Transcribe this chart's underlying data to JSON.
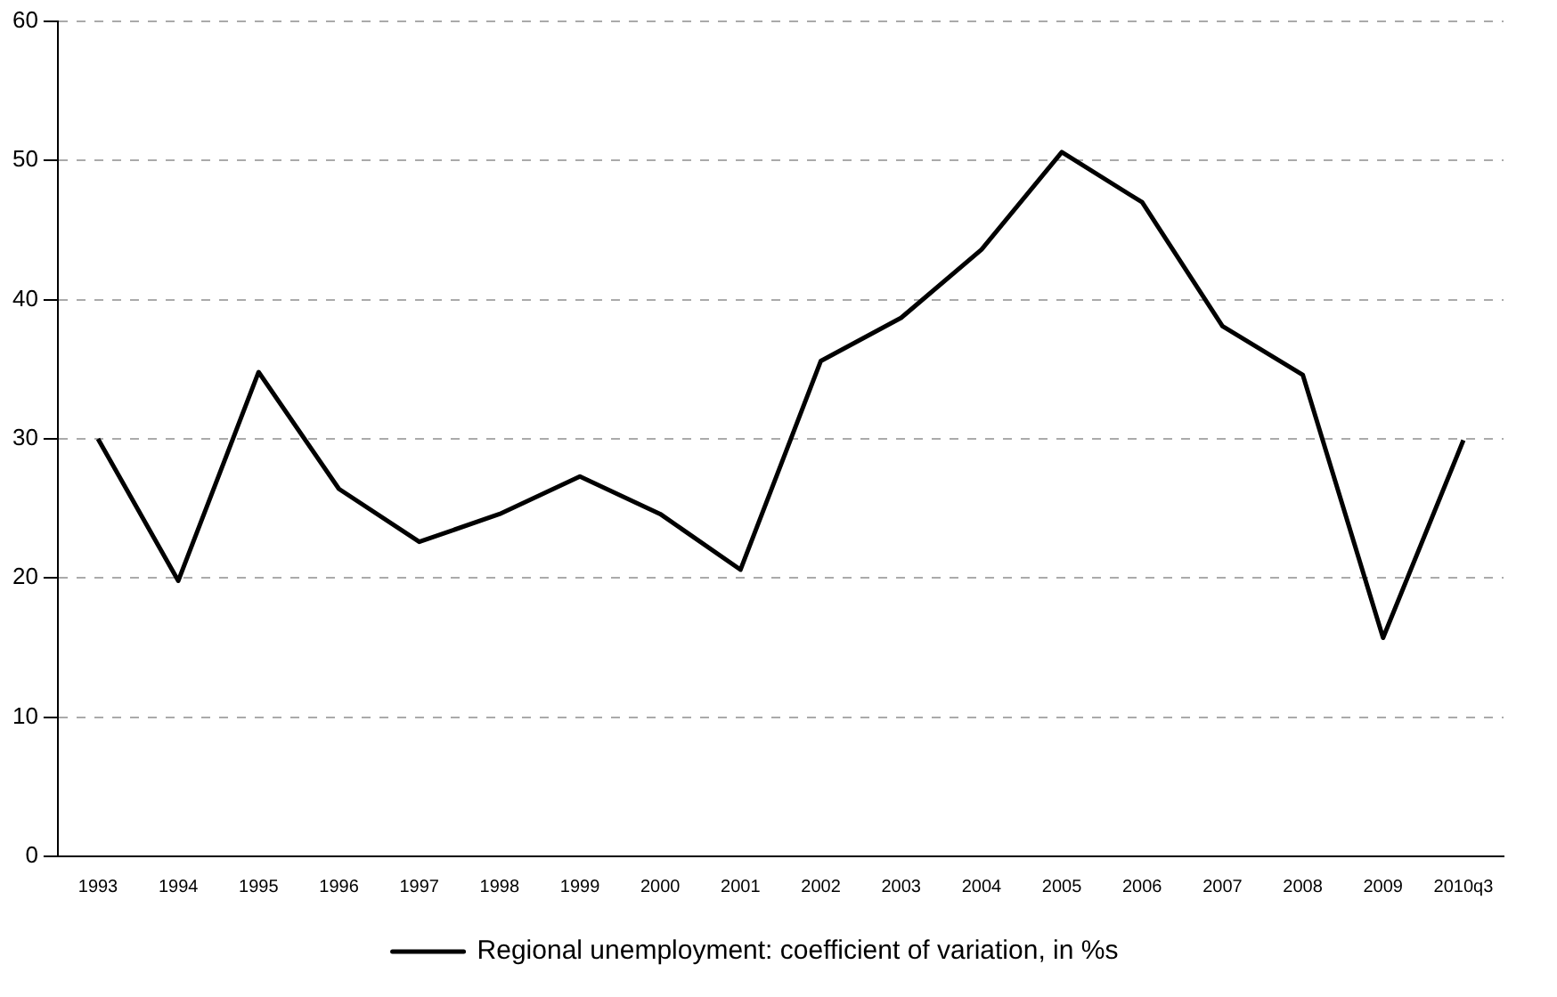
{
  "chart_data": {
    "type": "line",
    "categories": [
      "1993",
      "1994",
      "1995",
      "1996",
      "1997",
      "1998",
      "1999",
      "2000",
      "2001",
      "2002",
      "2003",
      "2004",
      "2005",
      "2006",
      "2007",
      "2008",
      "2009",
      "2010q3"
    ],
    "series": [
      {
        "name": "Regional unemployment: coefficient of variation, in %s",
        "color": "#000000",
        "values": [
          30.0,
          19.8,
          34.8,
          26.4,
          22.6,
          24.6,
          27.3,
          24.6,
          20.6,
          35.6,
          38.7,
          43.6,
          50.6,
          47.0,
          38.1,
          34.6,
          15.7,
          29.9
        ]
      }
    ],
    "ylim": [
      0,
      60
    ],
    "yticks": [
      0,
      10,
      20,
      30,
      40,
      50,
      60
    ],
    "grid": "y",
    "legend": "bottom",
    "marker": "none",
    "line_style": "solid"
  }
}
